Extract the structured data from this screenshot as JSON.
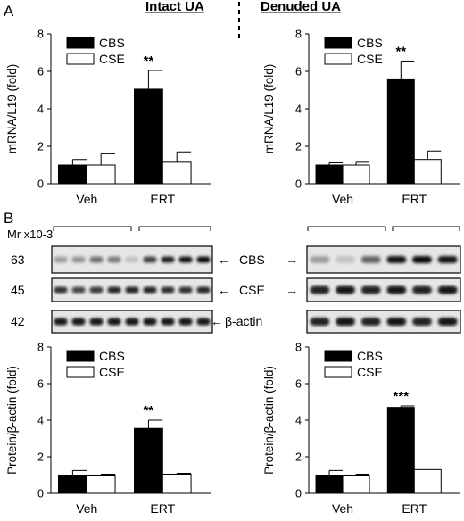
{
  "panel_labels": {
    "a": "A",
    "b": "B"
  },
  "headers": {
    "intact": "Intact UA",
    "denuded": "Denuded UA"
  },
  "blot": {
    "mw_unit": "Mr x10-3",
    "markers": [
      "63",
      "45",
      "42"
    ],
    "band_labels": [
      "CBS",
      "CSE",
      "β-actin"
    ],
    "arrow": "←"
  },
  "colors": {
    "cbs": "#000000",
    "cse": "#ffffff",
    "blot_bg": "#e6e6e6"
  },
  "chart_data": [
    {
      "id": "mrna-intact",
      "type": "bar",
      "ylabel": "mRNA/L19 (fold)",
      "ylim": [
        0,
        8
      ],
      "yticks": [
        0,
        2,
        4,
        6,
        8
      ],
      "categories": [
        "Veh",
        "ERT"
      ],
      "series": [
        {
          "name": "CBS",
          "values": [
            1.0,
            5.05
          ],
          "errors": [
            0.3,
            1.0
          ]
        },
        {
          "name": "CSE",
          "values": [
            1.0,
            1.15
          ],
          "errors": [
            0.6,
            0.55
          ]
        }
      ],
      "annotations": [
        {
          "category": "ERT",
          "series": "CBS",
          "text": "**"
        }
      ],
      "legend": "top-left"
    },
    {
      "id": "mrna-denuded",
      "type": "bar",
      "ylabel": "mRNA/L19 (fold)",
      "ylim": [
        0,
        8
      ],
      "yticks": [
        0,
        2,
        4,
        6,
        8
      ],
      "categories": [
        "Veh",
        "ERT"
      ],
      "series": [
        {
          "name": "CBS",
          "values": [
            1.0,
            5.6
          ],
          "errors": [
            0.12,
            0.95
          ]
        },
        {
          "name": "CSE",
          "values": [
            1.0,
            1.3
          ],
          "errors": [
            0.15,
            0.45
          ]
        }
      ],
      "annotations": [
        {
          "category": "ERT",
          "series": "CBS",
          "text": "**"
        }
      ],
      "legend": "top-left"
    },
    {
      "id": "protein-intact",
      "type": "bar",
      "ylabel": "Protein/β-actin (fold)",
      "ylim": [
        0,
        8
      ],
      "yticks": [
        0,
        2,
        4,
        6,
        8
      ],
      "categories": [
        "Veh",
        "ERT"
      ],
      "series": [
        {
          "name": "CBS",
          "values": [
            1.0,
            3.55
          ],
          "errors": [
            0.25,
            0.45
          ]
        },
        {
          "name": "CSE",
          "values": [
            1.0,
            1.05
          ],
          "errors": [
            0.05,
            0.05
          ]
        }
      ],
      "annotations": [
        {
          "category": "ERT",
          "series": "CBS",
          "text": "**"
        }
      ],
      "legend": "top-left"
    },
    {
      "id": "protein-denuded",
      "type": "bar",
      "ylabel": "Protein/β-actin (fold)",
      "ylim": [
        0,
        8
      ],
      "yticks": [
        0,
        2,
        4,
        6,
        8
      ],
      "categories": [
        "Veh",
        "ERT"
      ],
      "series": [
        {
          "name": "CBS",
          "values": [
            1.0,
            4.7
          ],
          "errors": [
            0.25,
            0.08
          ]
        },
        {
          "name": "CSE",
          "values": [
            1.0,
            1.3
          ],
          "errors": [
            0.05,
            0.0
          ]
        }
      ],
      "annotations": [
        {
          "category": "ERT",
          "series": "CBS",
          "text": "***"
        }
      ],
      "legend": "top-left"
    }
  ]
}
